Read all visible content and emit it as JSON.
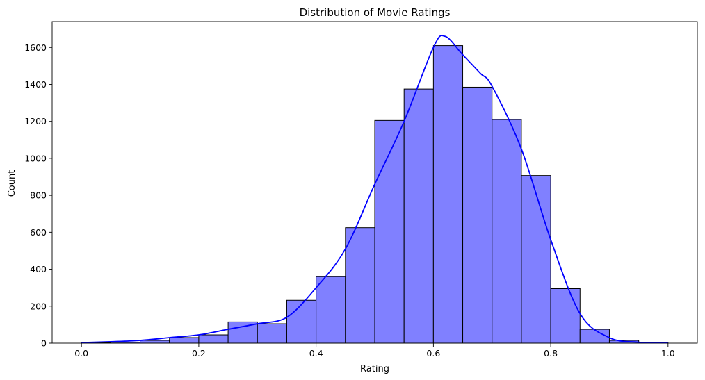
{
  "chart_data": {
    "type": "bar",
    "subtype": "histogram",
    "title": "Distribution of Movie Ratings",
    "xlabel": "Rating",
    "ylabel": "Count",
    "xlim": [
      -0.05,
      1.05
    ],
    "ylim": [
      0,
      1740
    ],
    "xticks": [
      "0.0",
      "0.2",
      "0.4",
      "0.6",
      "0.8",
      "1.0"
    ],
    "xtick_values": [
      0.0,
      0.2,
      0.4,
      0.6,
      0.8,
      1.0
    ],
    "yticks": [
      "0",
      "200",
      "400",
      "600",
      "800",
      "1000",
      "1200",
      "1400",
      "1600"
    ],
    "ytick_values": [
      0,
      200,
      400,
      600,
      800,
      1000,
      1200,
      1400,
      1600
    ],
    "bin_edges": [
      0.0,
      0.05,
      0.1,
      0.15,
      0.2,
      0.25,
      0.3,
      0.35,
      0.4,
      0.45,
      0.5,
      0.55,
      0.6,
      0.65,
      0.7,
      0.75,
      0.8,
      0.85,
      0.9,
      0.95,
      1.0
    ],
    "values": [
      2,
      5,
      15,
      30,
      45,
      115,
      105,
      232,
      360,
      625,
      1205,
      1375,
      1610,
      1385,
      1210,
      907,
      295,
      75,
      15,
      3
    ],
    "bar_color": "#8080ff",
    "bar_edge_color": "#000000",
    "kde": {
      "color": "#0000ff",
      "x": [
        0.0,
        0.05,
        0.1,
        0.15,
        0.2,
        0.25,
        0.3,
        0.35,
        0.4,
        0.45,
        0.5,
        0.55,
        0.6,
        0.62,
        0.65,
        0.68,
        0.7,
        0.75,
        0.8,
        0.85,
        0.9,
        0.95,
        1.0
      ],
      "y": [
        3,
        8,
        15,
        30,
        45,
        75,
        105,
        140,
        300,
        510,
        860,
        1200,
        1600,
        1660,
        1560,
        1460,
        1390,
        1050,
        560,
        160,
        30,
        5,
        2
      ]
    },
    "grid": false,
    "legend": "none"
  }
}
